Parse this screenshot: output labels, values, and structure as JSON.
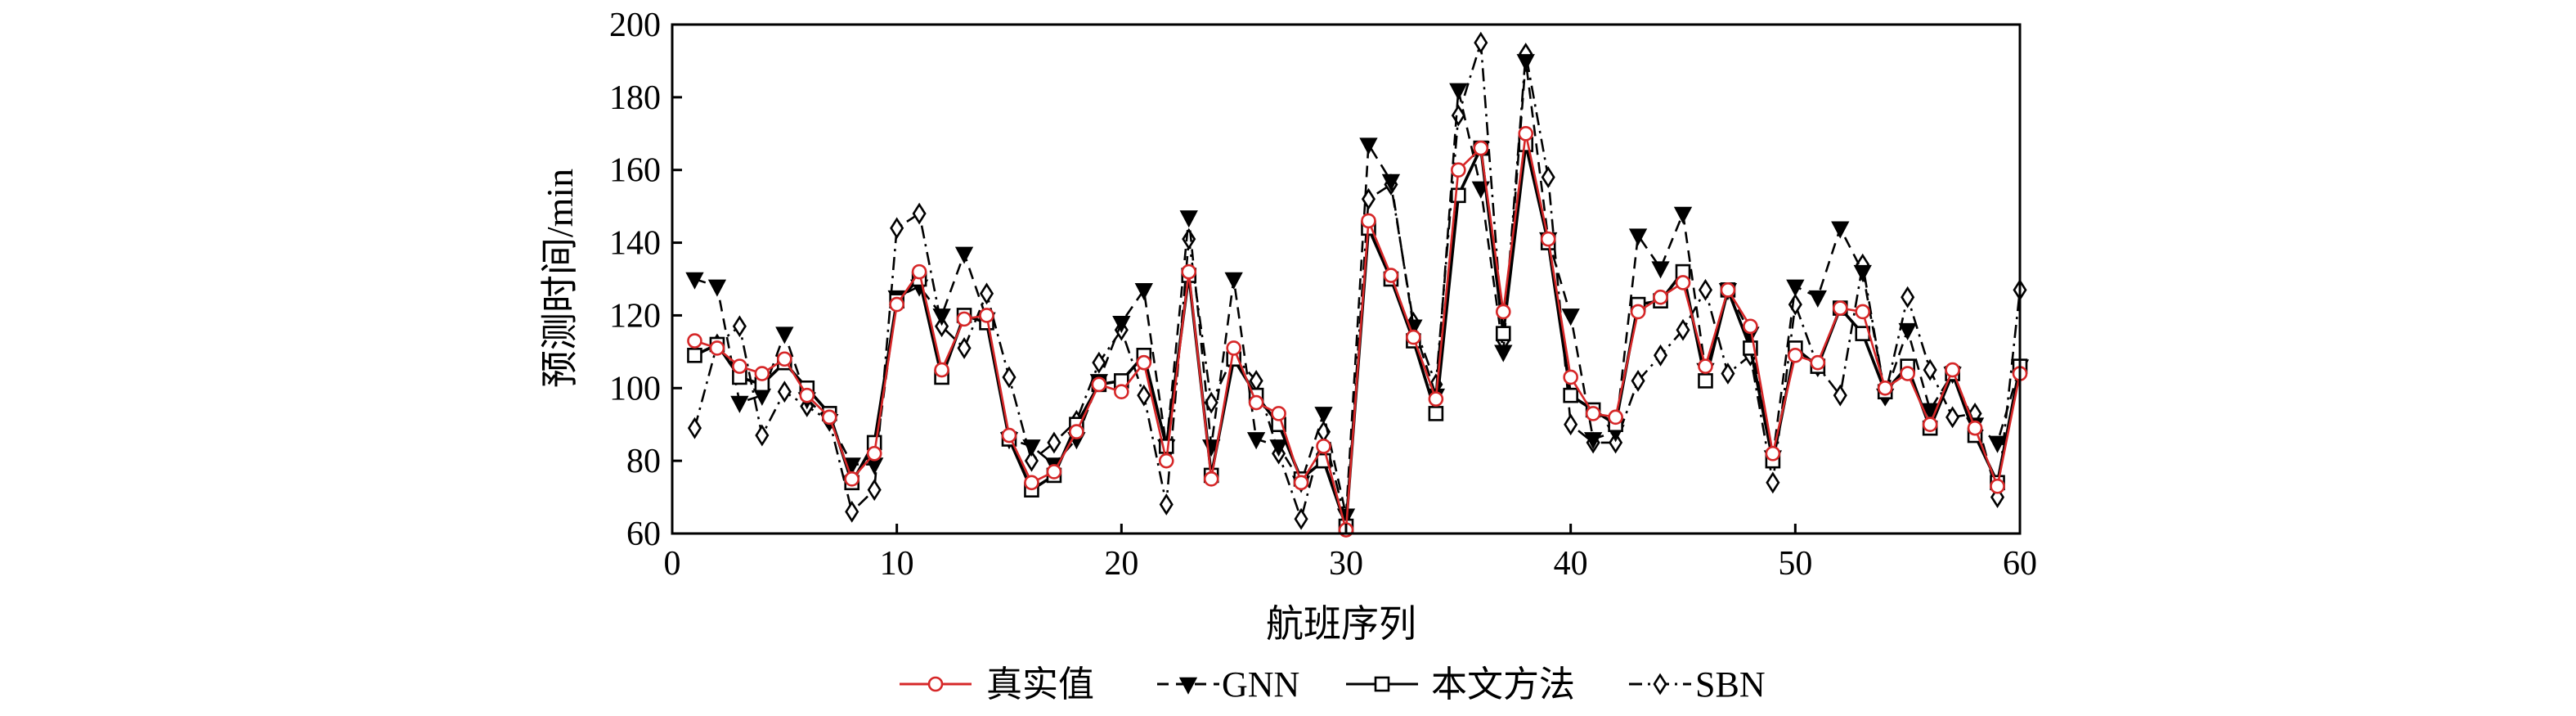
{
  "chart_data": {
    "type": "line",
    "title": "",
    "xlabel": "航班序列",
    "ylabel": "预测时间/min",
    "xlim": [
      0,
      60
    ],
    "ylim": [
      60,
      200
    ],
    "xticks": [
      0,
      10,
      20,
      30,
      40,
      50,
      60
    ],
    "yticks": [
      60,
      80,
      100,
      120,
      140,
      160,
      180,
      200
    ],
    "grid": false,
    "legend_position": "bottom",
    "x": [
      1,
      2,
      3,
      4,
      5,
      6,
      7,
      8,
      9,
      10,
      11,
      12,
      13,
      14,
      15,
      16,
      17,
      18,
      19,
      20,
      21,
      22,
      23,
      24,
      25,
      26,
      27,
      28,
      29,
      30,
      31,
      32,
      33,
      34,
      35,
      36,
      37,
      38,
      39,
      40,
      41,
      42,
      43,
      44,
      45,
      46,
      47,
      48,
      49,
      50,
      51,
      52,
      53,
      54,
      55,
      56,
      57,
      58,
      59,
      60
    ],
    "series": [
      {
        "name": "真实值",
        "color": "#d62728",
        "line_style": "solid",
        "marker": "circle",
        "values": [
          113,
          111,
          106,
          104,
          108,
          98,
          92,
          75,
          82,
          123,
          132,
          105,
          119,
          120,
          87,
          74,
          77,
          88,
          101,
          99,
          107,
          80,
          132,
          75,
          111,
          96,
          93,
          74,
          84,
          61,
          146,
          131,
          114,
          97,
          160,
          166,
          121,
          170,
          141,
          103,
          93,
          92,
          121,
          125,
          129,
          106,
          127,
          117,
          82,
          109,
          107,
          122,
          121,
          100,
          104,
          90,
          105,
          89,
          73,
          104
        ]
      },
      {
        "name": "GNN",
        "color": "#000000",
        "line_style": "dashed",
        "marker": "triangle-down",
        "values": [
          130,
          128,
          96,
          98,
          115,
          97,
          91,
          79,
          79,
          125,
          128,
          120,
          137,
          119,
          86,
          84,
          79,
          86,
          102,
          118,
          127,
          84,
          147,
          84,
          130,
          86,
          84,
          74,
          93,
          65,
          167,
          157,
          117,
          98,
          182,
          155,
          110,
          190,
          141,
          120,
          86,
          88,
          142,
          133,
          148,
          105,
          127,
          115,
          81,
          128,
          125,
          144,
          132,
          98,
          116,
          94,
          104,
          90,
          85,
          106
        ]
      },
      {
        "name": "本文方法",
        "color": "#000000",
        "line_style": "solid",
        "marker": "square",
        "values": [
          109,
          112,
          103,
          101,
          107,
          100,
          93,
          74,
          85,
          124,
          130,
          103,
          120,
          118,
          86,
          72,
          76,
          90,
          101,
          102,
          109,
          84,
          131,
          76,
          108,
          98,
          90,
          75,
          80,
          62,
          144,
          130,
          113,
          93,
          153,
          166,
          115,
          167,
          140,
          98,
          94,
          90,
          123,
          124,
          132,
          102,
          127,
          111,
          80,
          111,
          106,
          122,
          115,
          99,
          106,
          89,
          104,
          87,
          74,
          106
        ]
      },
      {
        "name": "SBN",
        "color": "#000000",
        "line_style": "dashdot",
        "marker": "diamond",
        "values": [
          89,
          112,
          117,
          87,
          99,
          95,
          91,
          66,
          72,
          144,
          148,
          117,
          111,
          126,
          103,
          80,
          85,
          91,
          107,
          116,
          98,
          68,
          141,
          96,
          109,
          102,
          82,
          64,
          88,
          63,
          152,
          156,
          118,
          101,
          175,
          195,
          113,
          192,
          158,
          90,
          85,
          85,
          102,
          109,
          116,
          127,
          104,
          109,
          74,
          123,
          106,
          98,
          134,
          98,
          125,
          105,
          92,
          93,
          70,
          127
        ]
      }
    ]
  }
}
